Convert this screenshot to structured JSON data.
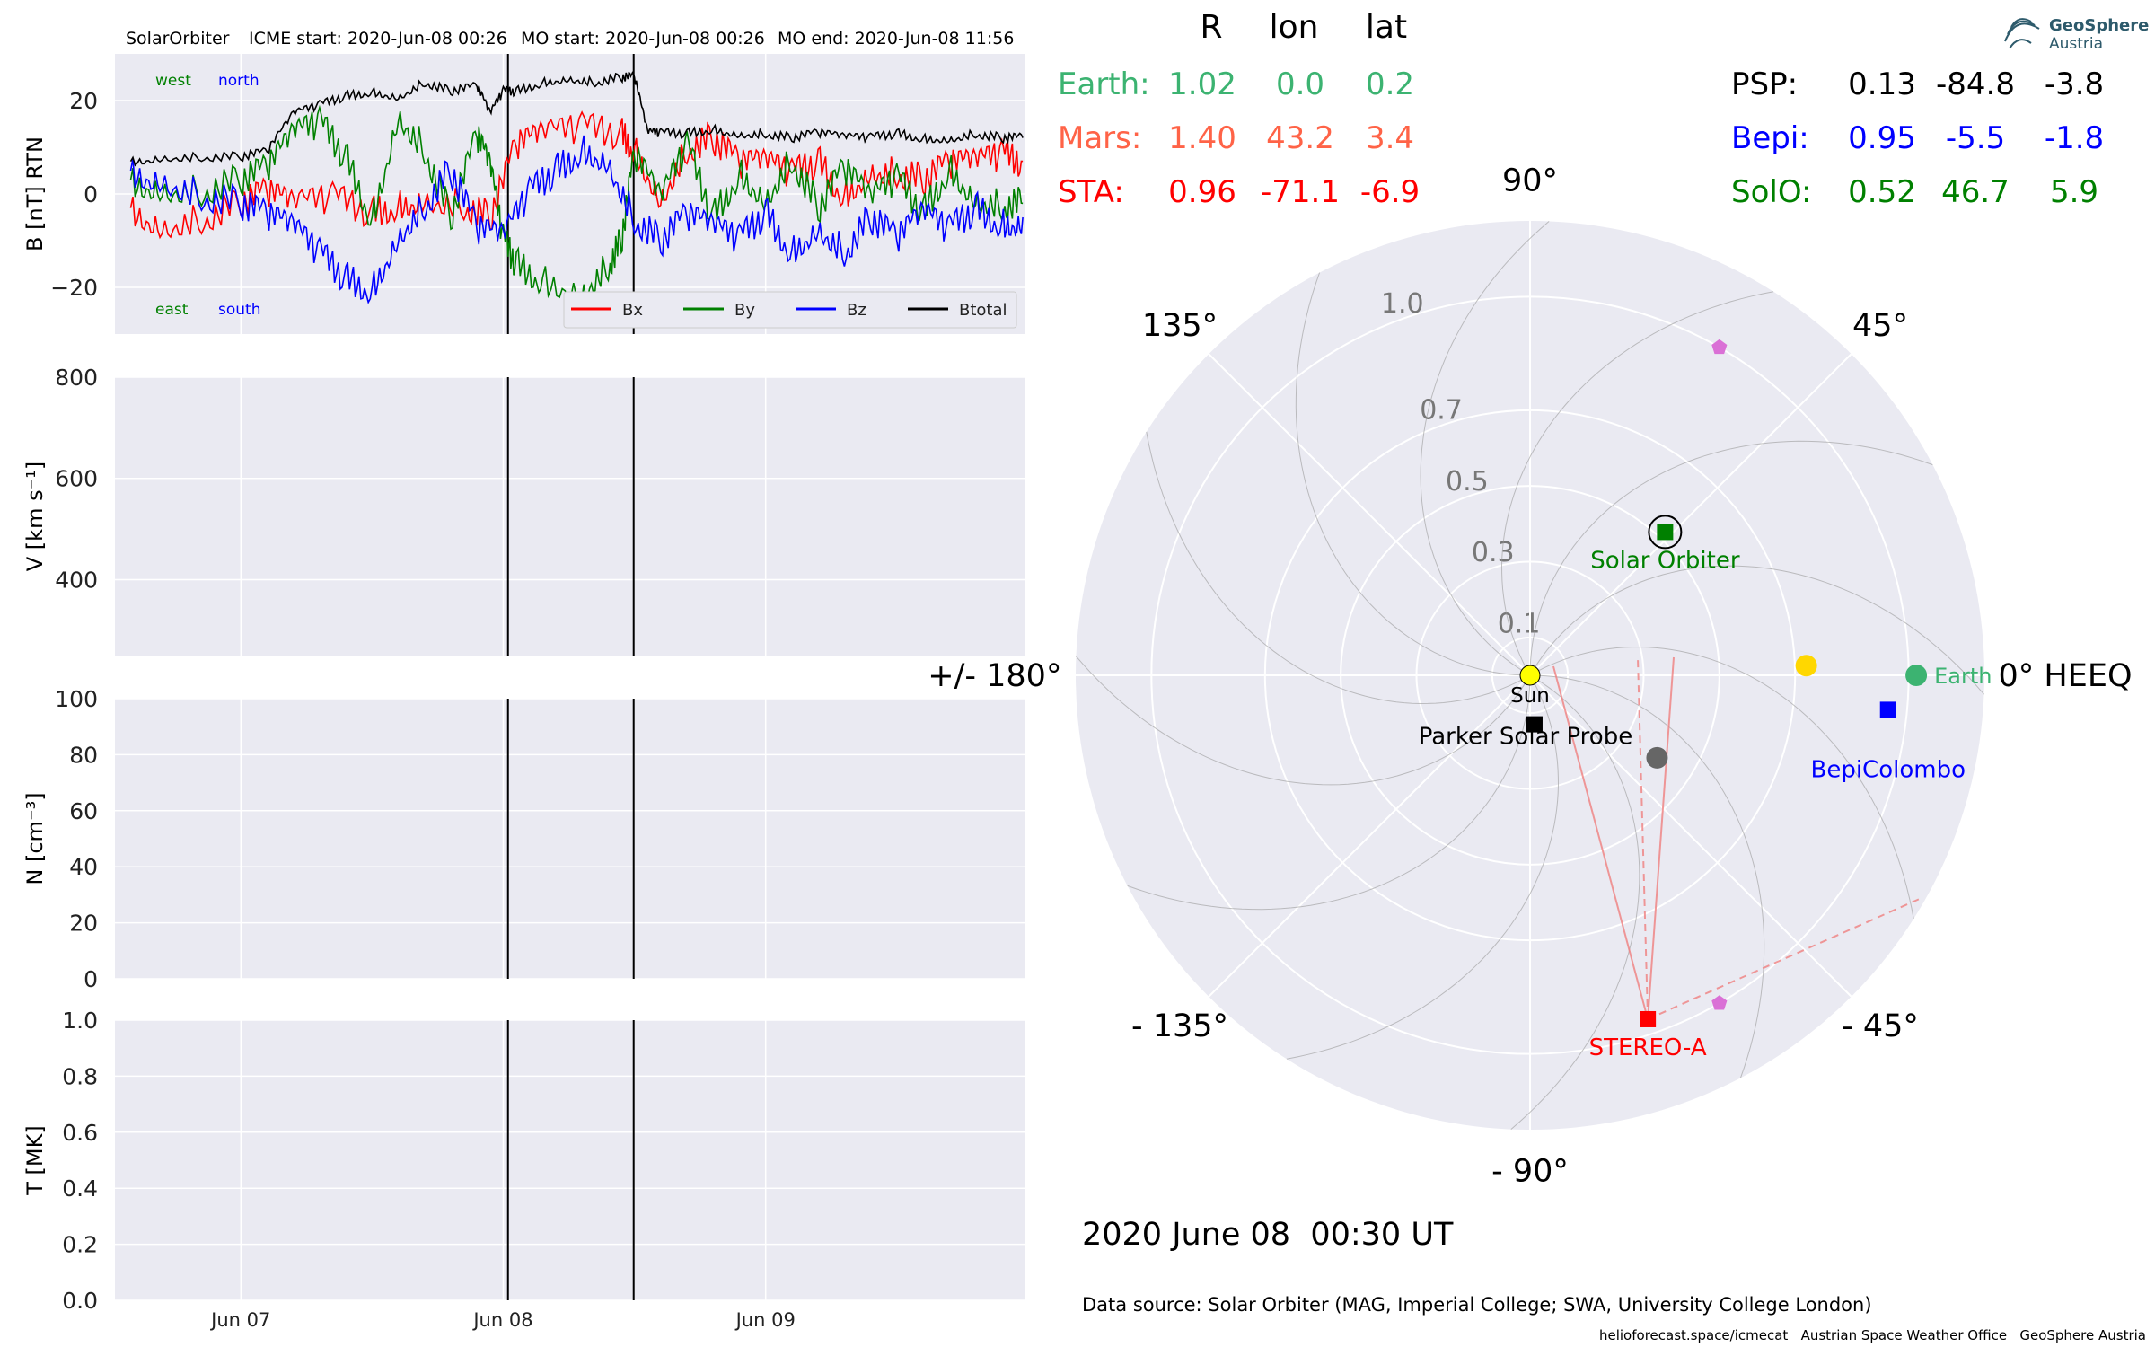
{
  "header": {
    "spacecraft": "SolarOrbiter",
    "icme_start": "ICME start: 2020-Jun-08 00:26",
    "mo_start": "MO start: 2020-Jun-08 00:26",
    "mo_end": "MO end: 2020-Jun-08 11:56"
  },
  "chart_data": [
    {
      "type": "line",
      "panel": "magnetic-field",
      "ylabel": "B [nT] RTN",
      "ylim": [
        -30,
        30
      ],
      "yticks": [
        -20,
        0,
        20
      ],
      "ytick_labels": [
        "−20",
        "0",
        "20"
      ],
      "xlim_days": [
        6.52,
        9.99
      ],
      "x_ticks": [
        {
          "day": 7,
          "label": "Jun 07"
        },
        {
          "day": 8,
          "label": "Jun 08"
        },
        {
          "day": 9,
          "label": "Jun 09"
        }
      ],
      "event_lines_day": [
        8.018,
        8.497
      ],
      "annotations": {
        "west": "west",
        "north": "north",
        "east": "east",
        "south": "south"
      },
      "legend": {
        "placement": "lower-right",
        "entries": [
          "Bx",
          "By",
          "Bz",
          "Btotal"
        ]
      },
      "series": [
        {
          "name": "Bx",
          "color": "#ff0000",
          "x": [
            6.58,
            6.7,
            6.85,
            7.0,
            7.1,
            7.2,
            7.35,
            7.5,
            7.6,
            7.7,
            7.85,
            7.95,
            8.05,
            8.15,
            8.3,
            8.45,
            8.5,
            8.6,
            8.7,
            8.8,
            8.9,
            9.0,
            9.1,
            9.2,
            9.3,
            9.4,
            9.5,
            9.6,
            9.7,
            9.8,
            9.9,
            9.98
          ],
          "y": [
            -3,
            -6,
            -5,
            -2,
            0,
            -3,
            -1,
            -4,
            -2,
            0,
            -2,
            -5,
            10,
            12,
            14,
            13,
            10,
            0,
            10,
            12,
            6,
            6,
            4,
            7,
            0,
            6,
            5,
            3,
            6,
            6,
            8,
            7
          ]
        },
        {
          "name": "By",
          "color": "#008000",
          "x": [
            6.58,
            6.7,
            6.85,
            7.0,
            7.1,
            7.2,
            7.3,
            7.4,
            7.5,
            7.6,
            7.7,
            7.8,
            7.9,
            7.95,
            8.0,
            8.05,
            8.15,
            8.3,
            8.4,
            8.45,
            8.5,
            8.6,
            8.7,
            8.8,
            8.9,
            9.0,
            9.1,
            9.2,
            9.3,
            9.4,
            9.5,
            9.6,
            9.7,
            9.8,
            9.9,
            9.98
          ],
          "y": [
            3,
            2,
            1,
            3,
            5,
            12,
            15,
            8,
            -5,
            18,
            10,
            -5,
            12,
            5,
            -10,
            -15,
            -18,
            -20,
            -15,
            -10,
            8,
            -2,
            10,
            -5,
            5,
            0,
            8,
            -3,
            5,
            -2,
            3,
            -4,
            6,
            0,
            -2,
            -2
          ]
        },
        {
          "name": "Bz",
          "color": "#0000ff",
          "x": [
            6.58,
            6.7,
            6.85,
            7.0,
            7.1,
            7.2,
            7.3,
            7.4,
            7.5,
            7.6,
            7.7,
            7.8,
            7.9,
            8.0,
            8.1,
            8.2,
            8.3,
            8.4,
            8.5,
            8.6,
            8.7,
            8.8,
            8.9,
            9.0,
            9.1,
            9.2,
            9.3,
            9.4,
            9.5,
            9.6,
            9.7,
            9.8,
            9.9,
            9.98
          ],
          "y": [
            5,
            4,
            0,
            -2,
            -5,
            -8,
            -13,
            -18,
            -20,
            -8,
            -2,
            5,
            -8,
            -10,
            0,
            5,
            10,
            8,
            -5,
            -10,
            -5,
            -8,
            -10,
            -4,
            -12,
            -6,
            -12,
            -5,
            -10,
            -5,
            -8,
            -3,
            -6,
            -5
          ]
        },
        {
          "name": "Btotal",
          "color": "#000000",
          "x": [
            6.58,
            6.7,
            6.85,
            7.0,
            7.1,
            7.2,
            7.3,
            7.4,
            7.5,
            7.6,
            7.7,
            7.8,
            7.9,
            7.95,
            8.0,
            8.05,
            8.15,
            8.25,
            8.35,
            8.45,
            8.5,
            8.55,
            8.6,
            8.7,
            8.8,
            8.9,
            9.0,
            9.1,
            9.2,
            9.3,
            9.4,
            9.5,
            9.6,
            9.7,
            9.8,
            9.9,
            9.98
          ],
          "y": [
            7,
            8,
            8,
            8,
            9,
            17,
            19,
            21,
            22,
            21,
            24,
            22,
            23,
            17,
            22,
            22,
            24,
            25,
            24,
            25,
            25,
            13,
            13,
            13,
            14,
            13,
            13,
            12,
            13,
            12,
            12,
            13,
            12,
            12,
            13,
            12,
            12
          ]
        }
      ]
    },
    {
      "type": "line",
      "panel": "velocity",
      "ylabel": "V [km s⁻¹]",
      "ylim": [
        250,
        800
      ],
      "yticks": [
        400,
        600,
        800
      ],
      "series": []
    },
    {
      "type": "line",
      "panel": "density",
      "ylabel": "N [cm⁻³]",
      "ylim": [
        0,
        100
      ],
      "yticks": [
        0,
        20,
        40,
        60,
        80,
        100
      ],
      "series": []
    },
    {
      "type": "line",
      "panel": "temperature",
      "ylabel": "T [MK]",
      "ylim": [
        0,
        1
      ],
      "yticks": [
        0.0,
        0.2,
        0.4,
        0.6,
        0.8,
        1.0
      ],
      "ytick_labels": [
        "0.0",
        "0.2",
        "0.4",
        "0.6",
        "0.8",
        "1.0"
      ],
      "series": []
    },
    {
      "type": "scatter",
      "panel": "polar-position",
      "coordinate_system": "HEEQ",
      "angle_labels": [
        {
          "deg": 0,
          "label": "0° HEEQ"
        },
        {
          "deg": 45,
          "label": "45°"
        },
        {
          "deg": 90,
          "label": "90°"
        },
        {
          "deg": 135,
          "label": "135°"
        },
        {
          "deg": 180,
          "label": "+/- 180°"
        },
        {
          "deg": -135,
          "label": "- 135°"
        },
        {
          "deg": -90,
          "label": "- 90°"
        },
        {
          "deg": -45,
          "label": "- 45°"
        }
      ],
      "radial_rings": [
        {
          "r": 0.1,
          "label": "0.1"
        },
        {
          "r": 0.3,
          "label": "0.3"
        },
        {
          "r": 0.5,
          "label": "0.5"
        },
        {
          "r": 0.7,
          "label": "0.7"
        },
        {
          "r": 1.0,
          "label": "1.0"
        }
      ],
      "r_max": 1.2,
      "bodies": [
        {
          "name": "Sun",
          "label": "Sun",
          "r": 0.0,
          "lon": 0.0,
          "color": "#ffff00",
          "marker": "circle"
        },
        {
          "name": "Parker Solar Probe",
          "label": "Parker Solar Probe",
          "r": 0.13,
          "lon": -84.8,
          "color": "#000000",
          "marker": "square"
        },
        {
          "name": "Solar Orbiter",
          "label": "Solar Orbiter",
          "r": 0.52,
          "lon": 46.7,
          "color": "#008000",
          "marker": "square"
        },
        {
          "name": "Earth",
          "label": "Earth",
          "r": 1.02,
          "lon": 0.0,
          "color": "#3cb371",
          "marker": "circle"
        },
        {
          "name": "BepiColombo",
          "label": "BepiColombo",
          "r": 0.95,
          "lon": -5.5,
          "color": "#0000ff",
          "marker": "square"
        },
        {
          "name": "STEREO-A",
          "label": "STEREO-A",
          "r": 0.96,
          "lon": -71.1,
          "color": "#ff0000",
          "marker": "square"
        },
        {
          "name": "Mars",
          "label": "",
          "r": 1.4,
          "lon": 43.2,
          "color": "#ff6347",
          "marker": "circle"
        },
        {
          "name": "Mercury",
          "label": "",
          "r": 0.4,
          "lon": -33,
          "color": "#666666",
          "marker": "circle"
        },
        {
          "name": "Venus",
          "label": "",
          "r": 0.73,
          "lon": 2,
          "color": "#ffd700",
          "marker": "circle"
        },
        {
          "name": "L5-marker",
          "label": "",
          "r": 1.0,
          "lon": -60,
          "color": "#da70d6",
          "marker": "pentagon"
        },
        {
          "name": "L4-marker",
          "label": "",
          "r": 1.0,
          "lon": 60,
          "color": "#da70d6",
          "marker": "pentagon"
        }
      ]
    }
  ],
  "position_table": {
    "headers": [
      "R",
      "lon",
      "lat"
    ],
    "left": [
      {
        "name": "Earth:",
        "R": "1.02",
        "lon": "0.0",
        "lat": "0.2",
        "color": "#3cb371"
      },
      {
        "name": "Mars:",
        "R": "1.40",
        "lon": "43.2",
        "lat": "3.4",
        "color": "#ff6347"
      },
      {
        "name": "STA:",
        "R": "0.96",
        "lon": "-71.1",
        "lat": "-6.9",
        "color": "#ff0000"
      }
    ],
    "right": [
      {
        "name": "PSP:",
        "R": "0.13",
        "lon": "-84.8",
        "lat": "-3.8",
        "color": "#000000"
      },
      {
        "name": "Bepi:",
        "R": "0.95",
        "lon": "-5.5",
        "lat": "-1.8",
        "color": "#0000ff"
      },
      {
        "name": "SolO:",
        "R": "0.52",
        "lon": "46.7",
        "lat": "5.9",
        "color": "#008000"
      }
    ]
  },
  "logo": {
    "line1": "GeoSphere",
    "line2": "Austria"
  },
  "timestamp": "2020 June 08  00:30 UT",
  "data_source": "Data source: Solar Orbiter (MAG, Imperial College; SWA, University College London)",
  "footer": "helioforecast.space/icmecat   Austrian Space Weather Office   GeoSphere Austria"
}
